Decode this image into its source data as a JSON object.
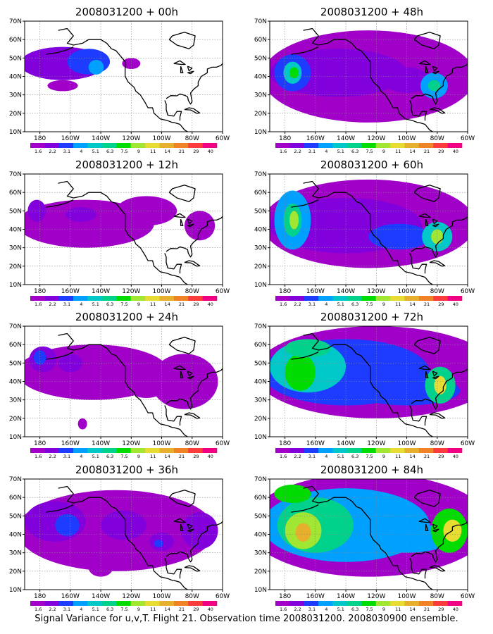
{
  "figure": {
    "footer": "Signal Variance for u,v,T. Flight 21. Observation time 2008031200. 2008030900 ensemble."
  },
  "map": {
    "xticks": [
      "180",
      "160W",
      "140W",
      "120W",
      "100W",
      "80W",
      "60W"
    ],
    "yticks": [
      "10N",
      "20N",
      "30N",
      "40N",
      "50N",
      "60N",
      "70N"
    ],
    "lon_range": [
      -190,
      -60
    ],
    "lat_range": [
      10,
      70
    ]
  },
  "colorbar": {
    "labels": [
      "1.6",
      "2.2",
      "3.1",
      "4",
      "5.1",
      "6.3",
      "7.5",
      "9",
      "11",
      "14",
      "21",
      "29",
      "40"
    ],
    "colors": [
      "#a000c8",
      "#8200dc",
      "#1e3cff",
      "#00a0ff",
      "#00c8c8",
      "#00d28c",
      "#00dc00",
      "#a0e632",
      "#e6dc32",
      "#e6af2d",
      "#f08228",
      "#fa3c3c",
      "#f00082"
    ]
  },
  "chart_data": [
    {
      "type": "heatmap",
      "title": "2008031200 + 00h",
      "xlabel": "",
      "ylabel": "",
      "blobs": [
        {
          "lon": -165,
          "lat": 47,
          "rx": 28,
          "ry": 9,
          "level": 1
        },
        {
          "lon": -148,
          "lat": 48,
          "rx": 14,
          "ry": 7,
          "level": 2
        },
        {
          "lon": -143,
          "lat": 45,
          "rx": 5,
          "ry": 4,
          "level": 3
        },
        {
          "lon": -165,
          "lat": 35,
          "rx": 10,
          "ry": 3,
          "level": 0
        },
        {
          "lon": -120,
          "lat": 47,
          "rx": 6,
          "ry": 3,
          "level": 0
        }
      ]
    },
    {
      "type": "heatmap",
      "title": "2008031200 + 12h",
      "xlabel": "",
      "ylabel": "",
      "blobs": [
        {
          "lon": -150,
          "lat": 43,
          "rx": 45,
          "ry": 13,
          "level": 0
        },
        {
          "lon": -182,
          "lat": 50,
          "rx": 6,
          "ry": 6,
          "level": 1
        },
        {
          "lon": -153,
          "lat": 48,
          "rx": 10,
          "ry": 4,
          "level": 1
        },
        {
          "lon": -110,
          "lat": 50,
          "rx": 20,
          "ry": 8,
          "level": 0
        },
        {
          "lon": -75,
          "lat": 42,
          "rx": 10,
          "ry": 8,
          "level": 0
        }
      ]
    },
    {
      "type": "heatmap",
      "title": "2008031200 + 24h",
      "xlabel": "",
      "ylabel": "",
      "blobs": [
        {
          "lon": -145,
          "lat": 45,
          "rx": 50,
          "ry": 15,
          "level": 0
        },
        {
          "lon": -178,
          "lat": 52,
          "rx": 9,
          "ry": 7,
          "level": 1
        },
        {
          "lon": -180,
          "lat": 53,
          "rx": 4,
          "ry": 4,
          "level": 2
        },
        {
          "lon": -160,
          "lat": 50,
          "rx": 8,
          "ry": 5,
          "level": 1
        },
        {
          "lon": -85,
          "lat": 40,
          "rx": 22,
          "ry": 15,
          "level": 0
        },
        {
          "lon": -110,
          "lat": 37,
          "rx": 12,
          "ry": 6,
          "level": 0
        },
        {
          "lon": -152,
          "lat": 17,
          "rx": 3,
          "ry": 3,
          "level": 0
        }
      ]
    },
    {
      "type": "heatmap",
      "title": "2008031200 + 36h",
      "xlabel": "",
      "ylabel": "",
      "blobs": [
        {
          "lon": -130,
          "lat": 42,
          "rx": 65,
          "ry": 22,
          "level": 0
        },
        {
          "lon": -170,
          "lat": 47,
          "rx": 20,
          "ry": 11,
          "level": 1
        },
        {
          "lon": -162,
          "lat": 45,
          "rx": 8,
          "ry": 6,
          "level": 2
        },
        {
          "lon": -125,
          "lat": 45,
          "rx": 15,
          "ry": 8,
          "level": 1
        },
        {
          "lon": -100,
          "lat": 36,
          "rx": 8,
          "ry": 5,
          "level": 1
        },
        {
          "lon": -102,
          "lat": 35,
          "rx": 3,
          "ry": 2,
          "level": 2
        },
        {
          "lon": -75,
          "lat": 42,
          "rx": 12,
          "ry": 10,
          "level": 1
        },
        {
          "lon": -140,
          "lat": 22,
          "rx": 8,
          "ry": 5,
          "level": 0
        }
      ]
    },
    {
      "type": "heatmap",
      "title": "2008031200 + 48h",
      "xlabel": "",
      "ylabel": "",
      "blobs": [
        {
          "lon": -125,
          "lat": 40,
          "rx": 70,
          "ry": 25,
          "level": 0
        },
        {
          "lon": -145,
          "lat": 42,
          "rx": 45,
          "ry": 13,
          "level": 1
        },
        {
          "lon": -175,
          "lat": 42,
          "rx": 12,
          "ry": 10,
          "level": 2
        },
        {
          "lon": -175,
          "lat": 42,
          "rx": 6,
          "ry": 6,
          "level": 4
        },
        {
          "lon": -174,
          "lat": 42,
          "rx": 3,
          "ry": 3,
          "level": 6
        },
        {
          "lon": -100,
          "lat": 38,
          "rx": 15,
          "ry": 7,
          "level": 1
        },
        {
          "lon": -82,
          "lat": 35,
          "rx": 9,
          "ry": 7,
          "level": 3
        },
        {
          "lon": -82,
          "lat": 35,
          "rx": 4,
          "ry": 3,
          "level": 5
        }
      ]
    },
    {
      "type": "heatmap",
      "title": "2008031200 + 60h",
      "xlabel": "",
      "ylabel": "",
      "blobs": [
        {
          "lon": -125,
          "lat": 43,
          "rx": 70,
          "ry": 24,
          "level": 0
        },
        {
          "lon": -140,
          "lat": 42,
          "rx": 50,
          "ry": 15,
          "level": 1
        },
        {
          "lon": -175,
          "lat": 45,
          "rx": 12,
          "ry": 16,
          "level": 3
        },
        {
          "lon": -175,
          "lat": 45,
          "rx": 6,
          "ry": 9,
          "level": 5
        },
        {
          "lon": -174,
          "lat": 45,
          "rx": 3,
          "ry": 5,
          "level": 7
        },
        {
          "lon": -105,
          "lat": 36,
          "rx": 20,
          "ry": 7,
          "level": 2
        },
        {
          "lon": -80,
          "lat": 36,
          "rx": 10,
          "ry": 8,
          "level": 4
        },
        {
          "lon": -80,
          "lat": 36,
          "rx": 4,
          "ry": 4,
          "level": 7
        }
      ]
    },
    {
      "type": "heatmap",
      "title": "2008031200 + 72h",
      "xlabel": "",
      "ylabel": "",
      "blobs": [
        {
          "lon": -120,
          "lat": 45,
          "rx": 80,
          "ry": 25,
          "level": 0
        },
        {
          "lon": -140,
          "lat": 45,
          "rx": 55,
          "ry": 18,
          "level": 2
        },
        {
          "lon": -165,
          "lat": 48,
          "rx": 25,
          "ry": 14,
          "level": 4
        },
        {
          "lon": -170,
          "lat": 45,
          "rx": 10,
          "ry": 10,
          "level": 6
        },
        {
          "lon": -165,
          "lat": 58,
          "rx": 15,
          "ry": 5,
          "level": 5
        },
        {
          "lon": -100,
          "lat": 35,
          "rx": 35,
          "ry": 8,
          "level": 2
        },
        {
          "lon": -78,
          "lat": 38,
          "rx": 10,
          "ry": 10,
          "level": 5
        },
        {
          "lon": -78,
          "lat": 38,
          "rx": 4,
          "ry": 5,
          "level": 8
        }
      ]
    },
    {
      "type": "heatmap",
      "title": "2008031200 + 84h",
      "xlabel": "",
      "ylabel": "",
      "blobs": [
        {
          "lon": -125,
          "lat": 45,
          "rx": 80,
          "ry": 28,
          "level": 0
        },
        {
          "lon": -140,
          "lat": 45,
          "rx": 55,
          "ry": 20,
          "level": 3
        },
        {
          "lon": -160,
          "lat": 45,
          "rx": 25,
          "ry": 15,
          "level": 5
        },
        {
          "lon": -168,
          "lat": 42,
          "rx": 12,
          "ry": 10,
          "level": 7
        },
        {
          "lon": -168,
          "lat": 41,
          "rx": 5,
          "ry": 5,
          "level": 9
        },
        {
          "lon": -175,
          "lat": 62,
          "rx": 12,
          "ry": 5,
          "level": 6
        },
        {
          "lon": -100,
          "lat": 38,
          "rx": 30,
          "ry": 8,
          "level": 3
        },
        {
          "lon": -72,
          "lat": 42,
          "rx": 12,
          "ry": 12,
          "level": 6
        },
        {
          "lon": -70,
          "lat": 42,
          "rx": 6,
          "ry": 6,
          "level": 8
        }
      ]
    }
  ]
}
